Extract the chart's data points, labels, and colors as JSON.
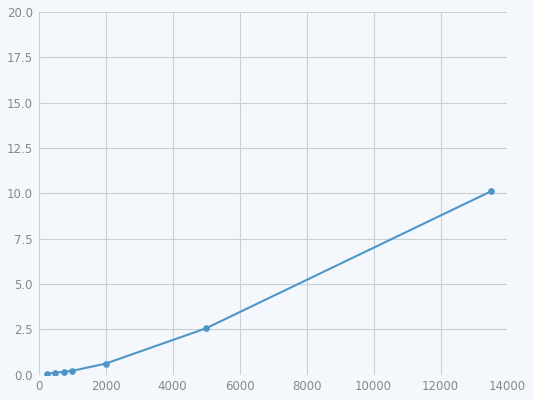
{
  "x": [
    250,
    500,
    750,
    1000,
    2000,
    5000,
    13500
  ],
  "y": [
    0.05,
    0.1,
    0.15,
    0.2,
    0.6,
    2.55,
    10.1
  ],
  "line_color": "#4e96c8",
  "marker_color": "#4e96c8",
  "marker_size": 4,
  "line_width": 1.5,
  "xlim": [
    0,
    14000
  ],
  "ylim": [
    0,
    20.0
  ],
  "xticks": [
    0,
    2000,
    4000,
    6000,
    8000,
    10000,
    12000,
    14000
  ],
  "yticks": [
    0.0,
    2.5,
    5.0,
    7.5,
    10.0,
    12.5,
    15.0,
    17.5,
    20.0
  ],
  "grid_color": "#c8d0d8",
  "background_color": "#f4f8fc",
  "spine_color": "#c8d0d8",
  "tick_color": "#888888",
  "tick_fontsize": 8.5
}
